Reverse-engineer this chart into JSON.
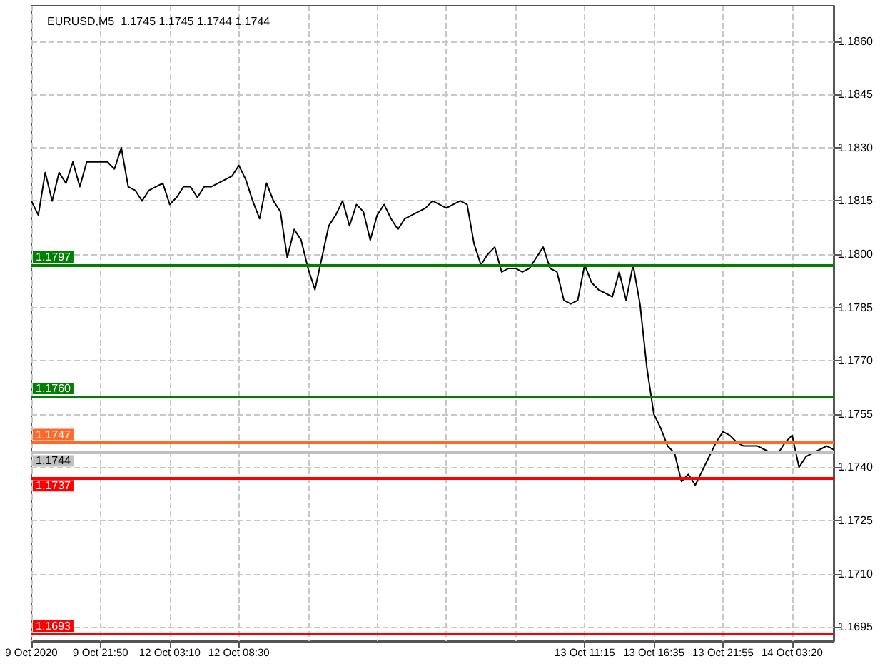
{
  "chart_data": {
    "type": "line",
    "title": "EURUSD,M5  1.1745 1.1745 1.1744 1.1744",
    "categories": [
      "9 Oct 2020",
      null,
      null,
      null,
      null,
      null,
      null,
      null,
      null,
      null,
      "9 Oct 21:50",
      null,
      null,
      null,
      null,
      null,
      null,
      null,
      null,
      null,
      "12 Oct 03:10",
      null,
      null,
      null,
      null,
      null,
      null,
      null,
      null,
      null,
      "12 Oct 08:30",
      null,
      null,
      null,
      null,
      null,
      null,
      null,
      null,
      null,
      null,
      null,
      null,
      null,
      null,
      null,
      null,
      null,
      null,
      null,
      null,
      null,
      null,
      null,
      null,
      null,
      null,
      null,
      null,
      null,
      null,
      null,
      null,
      null,
      null,
      null,
      null,
      null,
      null,
      null,
      null,
      null,
      null,
      null,
      null,
      null,
      null,
      null,
      null,
      null,
      "13 Oct 11:15",
      null,
      null,
      null,
      null,
      null,
      null,
      null,
      null,
      null,
      "13 Oct 16:35",
      null,
      null,
      null,
      null,
      null,
      null,
      null,
      null,
      null,
      "13 Oct 21:55",
      null,
      null,
      null,
      null,
      null,
      null,
      null,
      null,
      null,
      "14 Oct 03:20",
      null,
      null,
      null,
      null,
      null,
      null
    ],
    "series": [
      {
        "color": "#000000",
        "values": [
          1.1815,
          1.1811,
          1.1823,
          1.1815,
          1.1823,
          1.182,
          1.1826,
          1.1819,
          1.1826,
          1.1826,
          1.1826,
          1.1826,
          1.1824,
          1.183,
          1.1819,
          1.1818,
          1.1815,
          1.1818,
          1.1819,
          1.182,
          1.1814,
          1.1816,
          1.1819,
          1.1819,
          1.1816,
          1.1819,
          1.1819,
          1.182,
          1.1821,
          1.1822,
          1.1825,
          1.1821,
          1.1815,
          1.181,
          1.182,
          1.1815,
          1.1812,
          1.1799,
          1.1807,
          1.1804,
          1.1796,
          1.179,
          1.1799,
          1.1808,
          1.1811,
          1.1815,
          1.1808,
          1.1814,
          1.1812,
          1.1804,
          1.1811,
          1.1814,
          1.181,
          1.1807,
          1.181,
          1.1811,
          1.1812,
          1.1813,
          1.1815,
          1.1814,
          1.1813,
          1.1814,
          1.1815,
          1.1814,
          1.1803,
          1.1797,
          1.18,
          1.1802,
          1.1795,
          1.1796,
          1.1796,
          1.1795,
          1.1796,
          1.1799,
          1.1802,
          1.1796,
          1.1795,
          1.1787,
          1.1786,
          1.1787,
          1.1797,
          1.1792,
          1.179,
          1.1789,
          1.1788,
          1.1795,
          1.1787,
          1.1797,
          1.1786,
          1.1768,
          1.1755,
          1.1751,
          1.1746,
          1.1744,
          1.1736,
          1.1738,
          1.1735,
          1.1739,
          1.1743,
          1.1747,
          1.175,
          1.1749,
          1.1747,
          1.1746,
          1.1746,
          1.1746,
          1.1745,
          1.1744,
          1.1744,
          1.1747,
          1.1749,
          1.174,
          1.1743,
          1.1744,
          1.1745,
          1.1746,
          1.1745
        ]
      }
    ],
    "ylim": [
      1.1691,
      1.187
    ],
    "yticks": [
      {
        "value": 1.186,
        "label": "1.1860"
      },
      {
        "value": 1.1845,
        "label": "1.1845"
      },
      {
        "value": 1.183,
        "label": "1.1830"
      },
      {
        "value": 1.1815,
        "label": "1.1815"
      },
      {
        "value": 1.18,
        "label": "1.1800"
      },
      {
        "value": 1.1785,
        "label": "1.1785"
      },
      {
        "value": 1.177,
        "label": "1.1770"
      },
      {
        "value": 1.1755,
        "label": "1.1755"
      },
      {
        "value": 1.174,
        "label": "1.1740"
      },
      {
        "value": 1.1725,
        "label": "1.1725"
      },
      {
        "value": 1.171,
        "label": "1.1710"
      },
      {
        "value": 1.1695,
        "label": "1.1695"
      }
    ],
    "ref_lines": [
      {
        "axis": "y",
        "value": 1.1797,
        "label": "1.1797",
        "color": "#008000"
      },
      {
        "axis": "y",
        "value": 1.176,
        "label": "1.1760",
        "color": "#008000"
      },
      {
        "axis": "y",
        "value": 1.1747,
        "label": "1.1747",
        "color": "#ff6a2a"
      },
      {
        "axis": "y",
        "value": 1.1744,
        "label": "1.1744",
        "color": "#c0c0c0"
      },
      {
        "axis": "y",
        "value": 1.1737,
        "label": "1.1737",
        "color": "#ff0000"
      },
      {
        "axis": "y",
        "value": 1.1693,
        "label": "1.1693",
        "color": "#ff0000"
      }
    ],
    "grid": true,
    "marker": "none",
    "line_style": "solid"
  }
}
